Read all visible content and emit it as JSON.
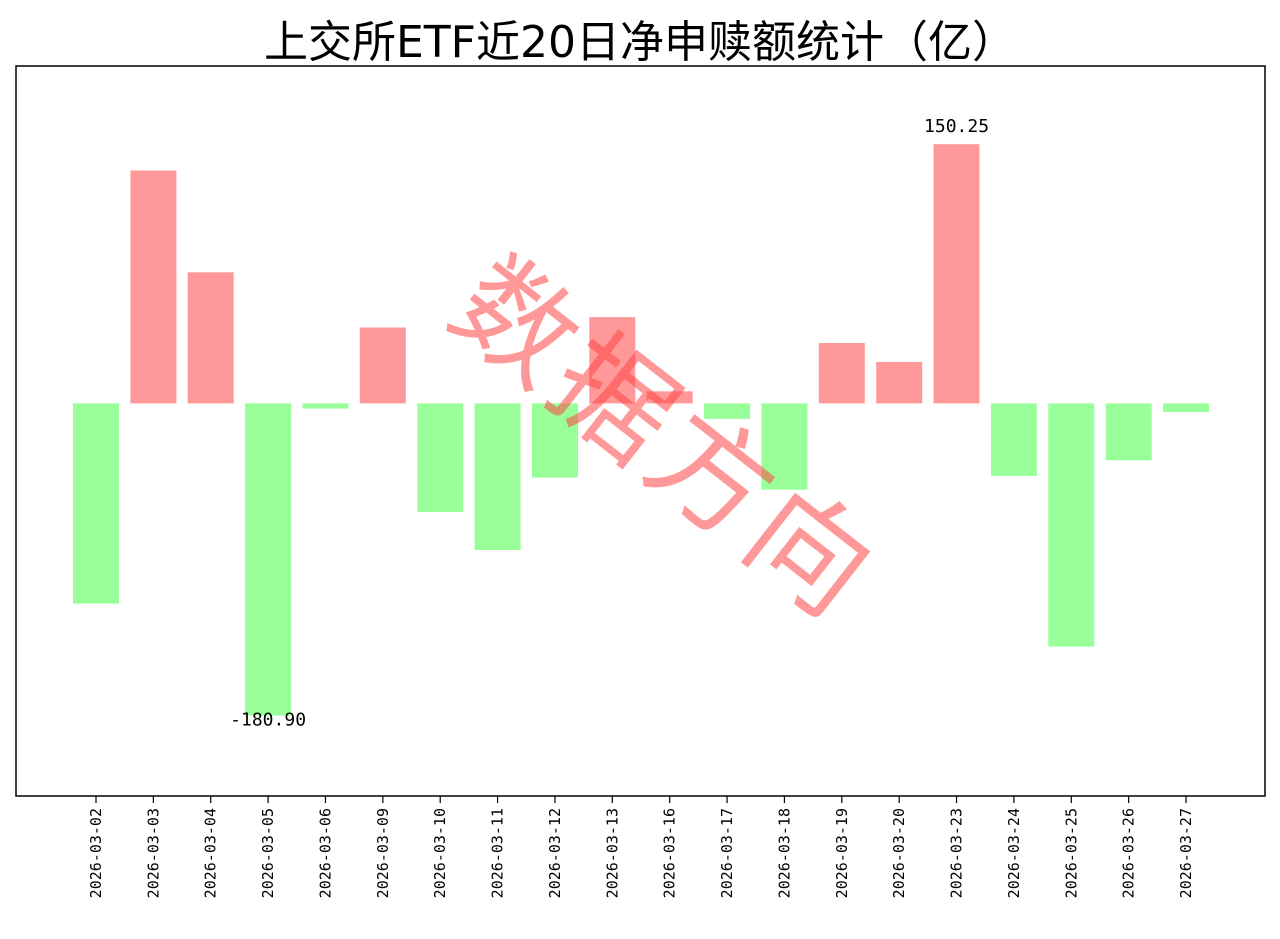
{
  "chart_data": {
    "type": "bar",
    "title": "上交所ETF近20日净申赎额统计（亿）",
    "categories": [
      "2026-03-02",
      "2026-03-03",
      "2026-03-04",
      "2026-03-05",
      "2026-03-06",
      "2026-03-09",
      "2026-03-10",
      "2026-03-11",
      "2026-03-12",
      "2026-03-13",
      "2026-03-16",
      "2026-03-17",
      "2026-03-18",
      "2026-03-19",
      "2026-03-20",
      "2026-03-23",
      "2026-03-24",
      "2026-03-25",
      "2026-03-26",
      "2026-03-27"
    ],
    "values": [
      -116,
      135,
      76,
      -181,
      -3,
      44,
      -63,
      -85,
      -43,
      50,
      7,
      -9,
      -50,
      35,
      24,
      150.25,
      -42,
      -141,
      -33,
      -5
    ],
    "annotations": [
      {
        "category": "2026-03-05",
        "text": "-180.90"
      },
      {
        "category": "2026-03-23",
        "text": "150.25"
      }
    ],
    "ylim": [
      -227,
      195
    ],
    "grid": false,
    "y_ticks_shown": false,
    "positive_color": "#ff9999",
    "negative_color": "#99ff99",
    "watermark": "数据方向"
  }
}
